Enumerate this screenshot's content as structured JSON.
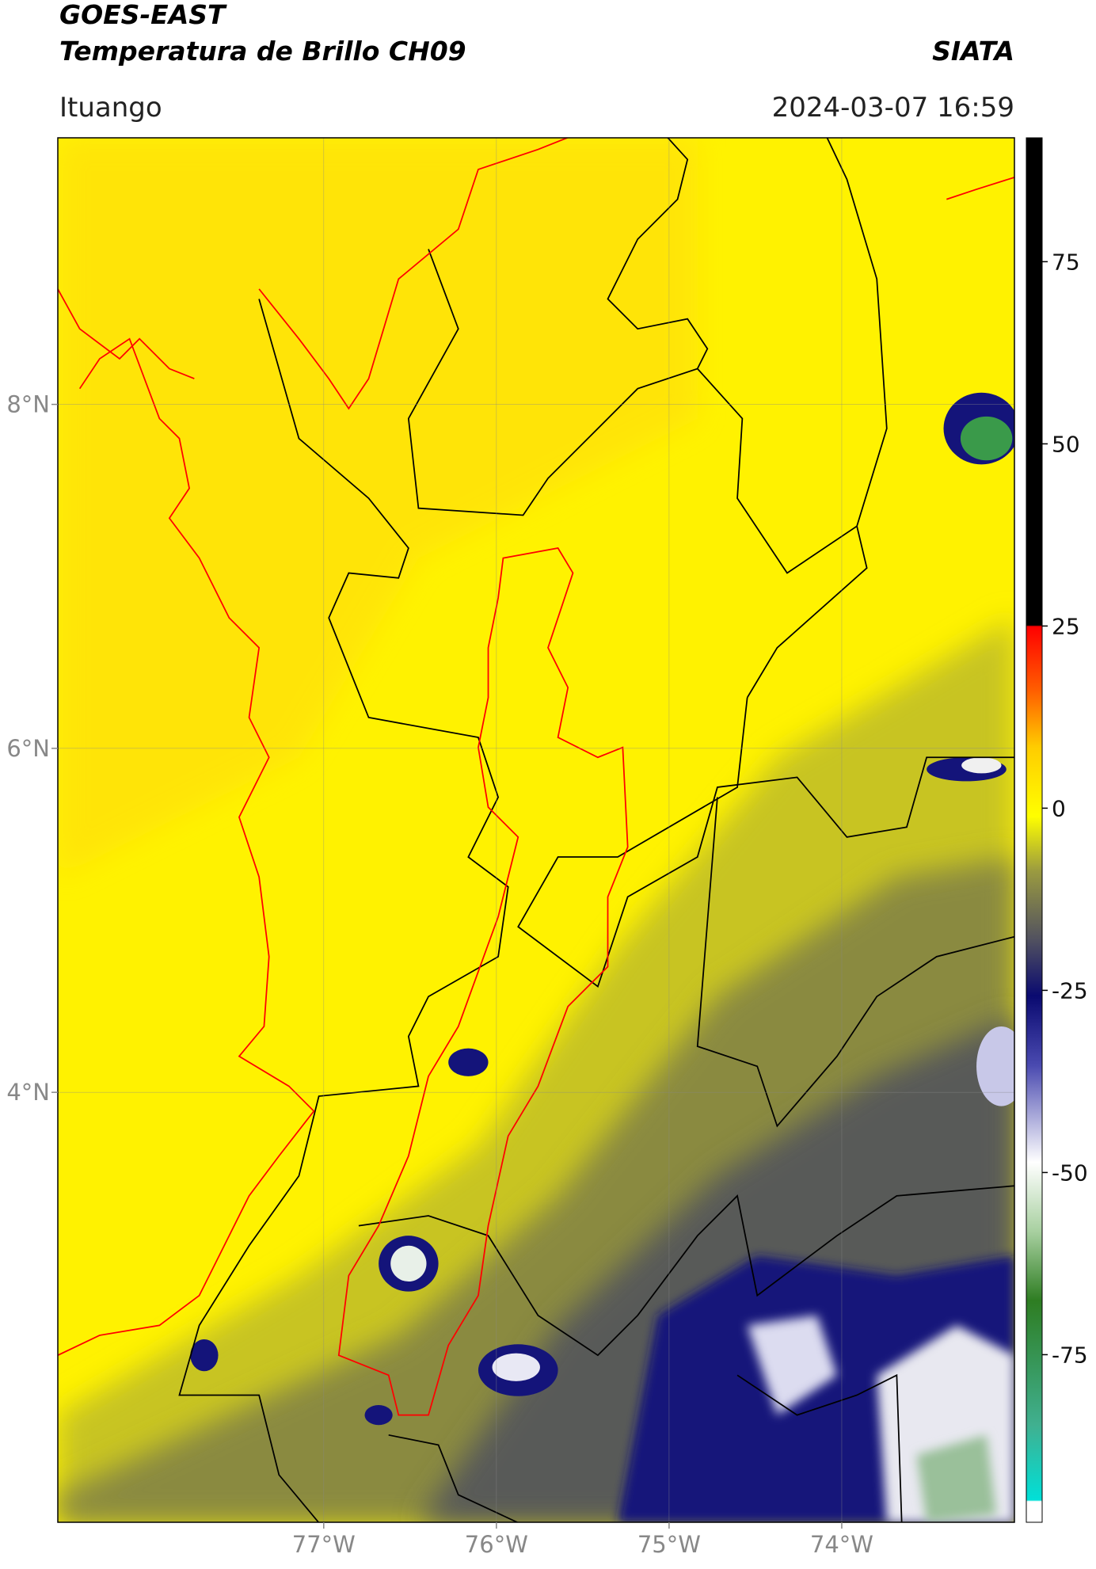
{
  "header": {
    "title": "GOES-EAST",
    "subtitle": "Temperatura de Brillo CH09",
    "brand": "SIATA",
    "region": "Ituango",
    "timestamp": "2024-03-07 16:59"
  },
  "chart_data": {
    "type": "map",
    "xlim": [
      -78.54,
      -73.0
    ],
    "ylim": [
      1.5,
      9.55
    ],
    "xticks": [
      {
        "value": -77,
        "label": "77°W"
      },
      {
        "value": -76,
        "label": "76°W"
      },
      {
        "value": -75,
        "label": "75°W"
      },
      {
        "value": -74,
        "label": "74°W"
      }
    ],
    "yticks": [
      {
        "value": 8,
        "label": "8°N"
      },
      {
        "value": 6,
        "label": "6°N"
      },
      {
        "value": 4,
        "label": "4°N"
      }
    ],
    "grid": true,
    "colorbar": {
      "lim": [
        -98,
        92
      ],
      "ticks": [
        75,
        50,
        25,
        0,
        -25,
        -50,
        -75
      ]
    }
  }
}
